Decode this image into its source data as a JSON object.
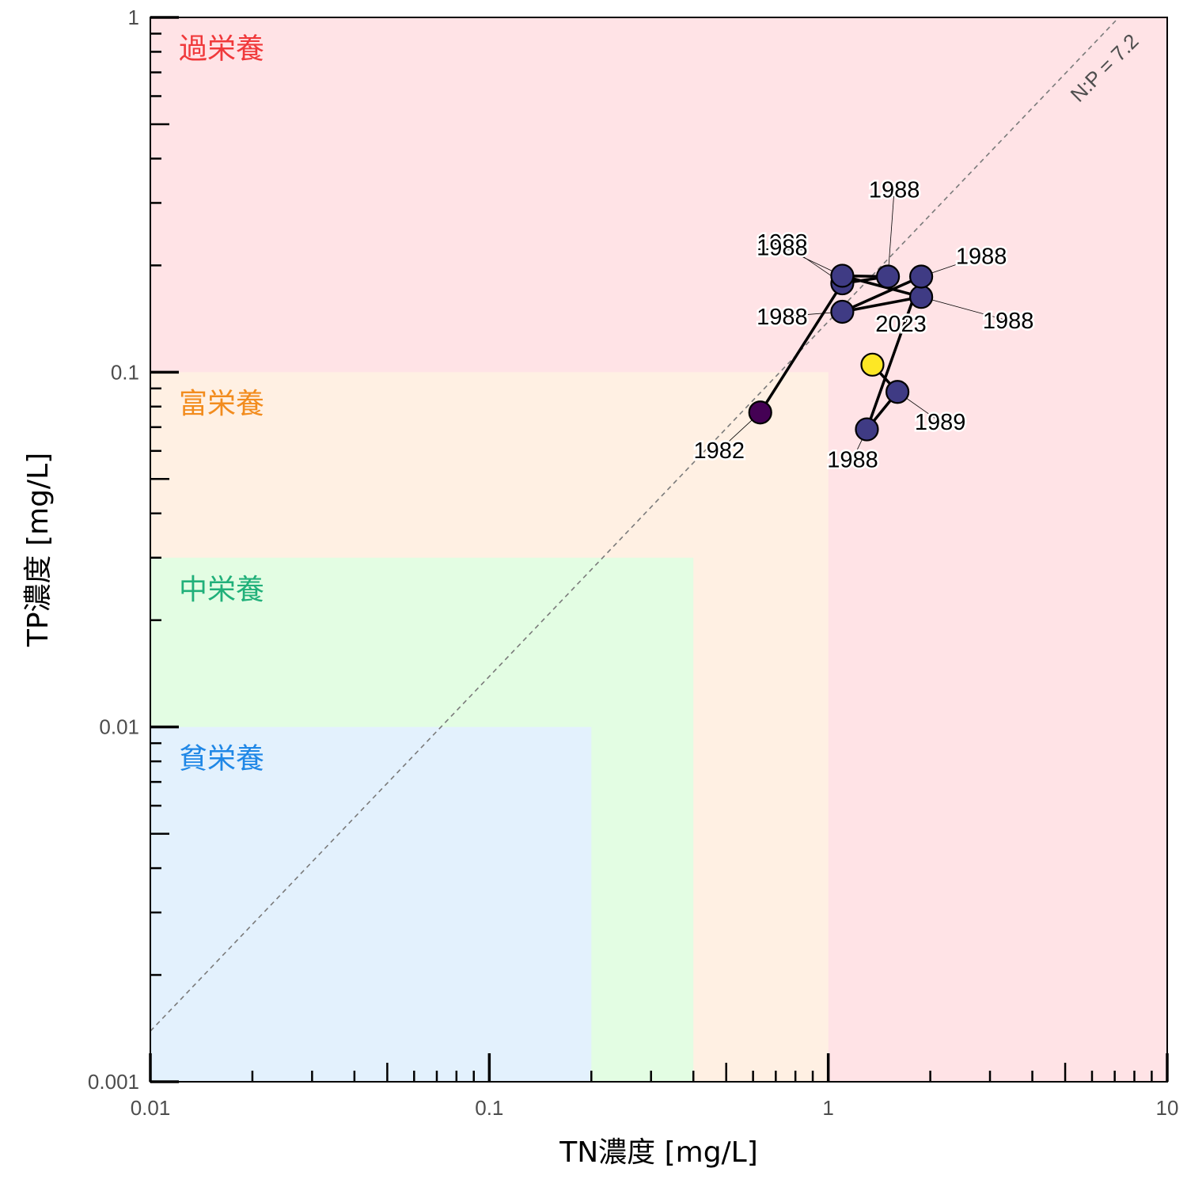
{
  "chart_data": {
    "type": "scatter",
    "title": "",
    "xlabel": "TN濃度 [mg/L]",
    "ylabel": "TP濃度 [mg/L]",
    "x_scale": "log",
    "y_scale": "log",
    "xlim": [
      0.01,
      10
    ],
    "ylim": [
      0.001,
      1
    ],
    "x_tick_labels": [
      "0.01",
      "0.1",
      "1",
      "10"
    ],
    "y_tick_labels": [
      "0.001",
      "0.01",
      "0.1",
      "1"
    ],
    "x_ticks": [
      0.01,
      0.1,
      1,
      10
    ],
    "y_ticks": [
      0.001,
      0.01,
      0.1,
      1
    ],
    "grid": false,
    "zones": [
      {
        "label": "過栄養",
        "tn_max": 10,
        "tp_max": 1,
        "fill": "#ffe3e6",
        "text_color": "#f0393b",
        "label_y": 0.82
      },
      {
        "label": "富栄養",
        "tn_max": 1,
        "tp_max": 0.1,
        "fill": "#fff0e3",
        "text_color": "#f28c1e",
        "label_y": 0.082
      },
      {
        "label": "中栄養",
        "tn_max": 0.4,
        "tp_max": 0.03,
        "fill": "#e3fde3",
        "text_color": "#21b07a",
        "label_y": 0.0245
      },
      {
        "label": "貧栄養",
        "tn_max": 0.2,
        "tp_max": 0.01,
        "fill": "#e3f1fd",
        "text_color": "#1f87e6",
        "label_y": 0.0082
      }
    ],
    "reference_line": {
      "label": "N:P = 7.2",
      "ratio": 7.2,
      "style": "dashed",
      "color": "#7a7a7a"
    },
    "series": [
      {
        "points": [
          {
            "x": 0.63,
            "y": 0.077,
            "year": "1982",
            "color": "#440154",
            "label": "1982"
          },
          {
            "x": 1.1,
            "y": 0.178,
            "year": "1988",
            "color": "#3f3b84",
            "label": "1988"
          },
          {
            "x": 1.5,
            "y": 0.186,
            "year": "1988",
            "color": "#3f3b84",
            "label": "1988"
          },
          {
            "x": 1.1,
            "y": 0.187,
            "year": "1988",
            "color": "#3f3b84",
            "label": "1988"
          },
          {
            "x": 1.88,
            "y": 0.163,
            "year": "1988",
            "color": "#3f3b84",
            "label": "1988"
          },
          {
            "x": 1.1,
            "y": 0.148,
            "year": "1988",
            "color": "#3f3b84",
            "label": "1988"
          },
          {
            "x": 1.88,
            "y": 0.186,
            "year": "1988",
            "color": "#3f3b84",
            "label": "1988"
          },
          {
            "x": 1.3,
            "y": 0.069,
            "year": "1988",
            "color": "#3f3b84",
            "label": "1988"
          },
          {
            "x": 1.6,
            "y": 0.088,
            "year": "1989",
            "color": "#3f3b84",
            "label": "1989"
          },
          {
            "x": 1.35,
            "y": 0.105,
            "year": "2023",
            "color": "#fde725",
            "label": "2023"
          }
        ],
        "path_color": "#000000"
      }
    ]
  }
}
